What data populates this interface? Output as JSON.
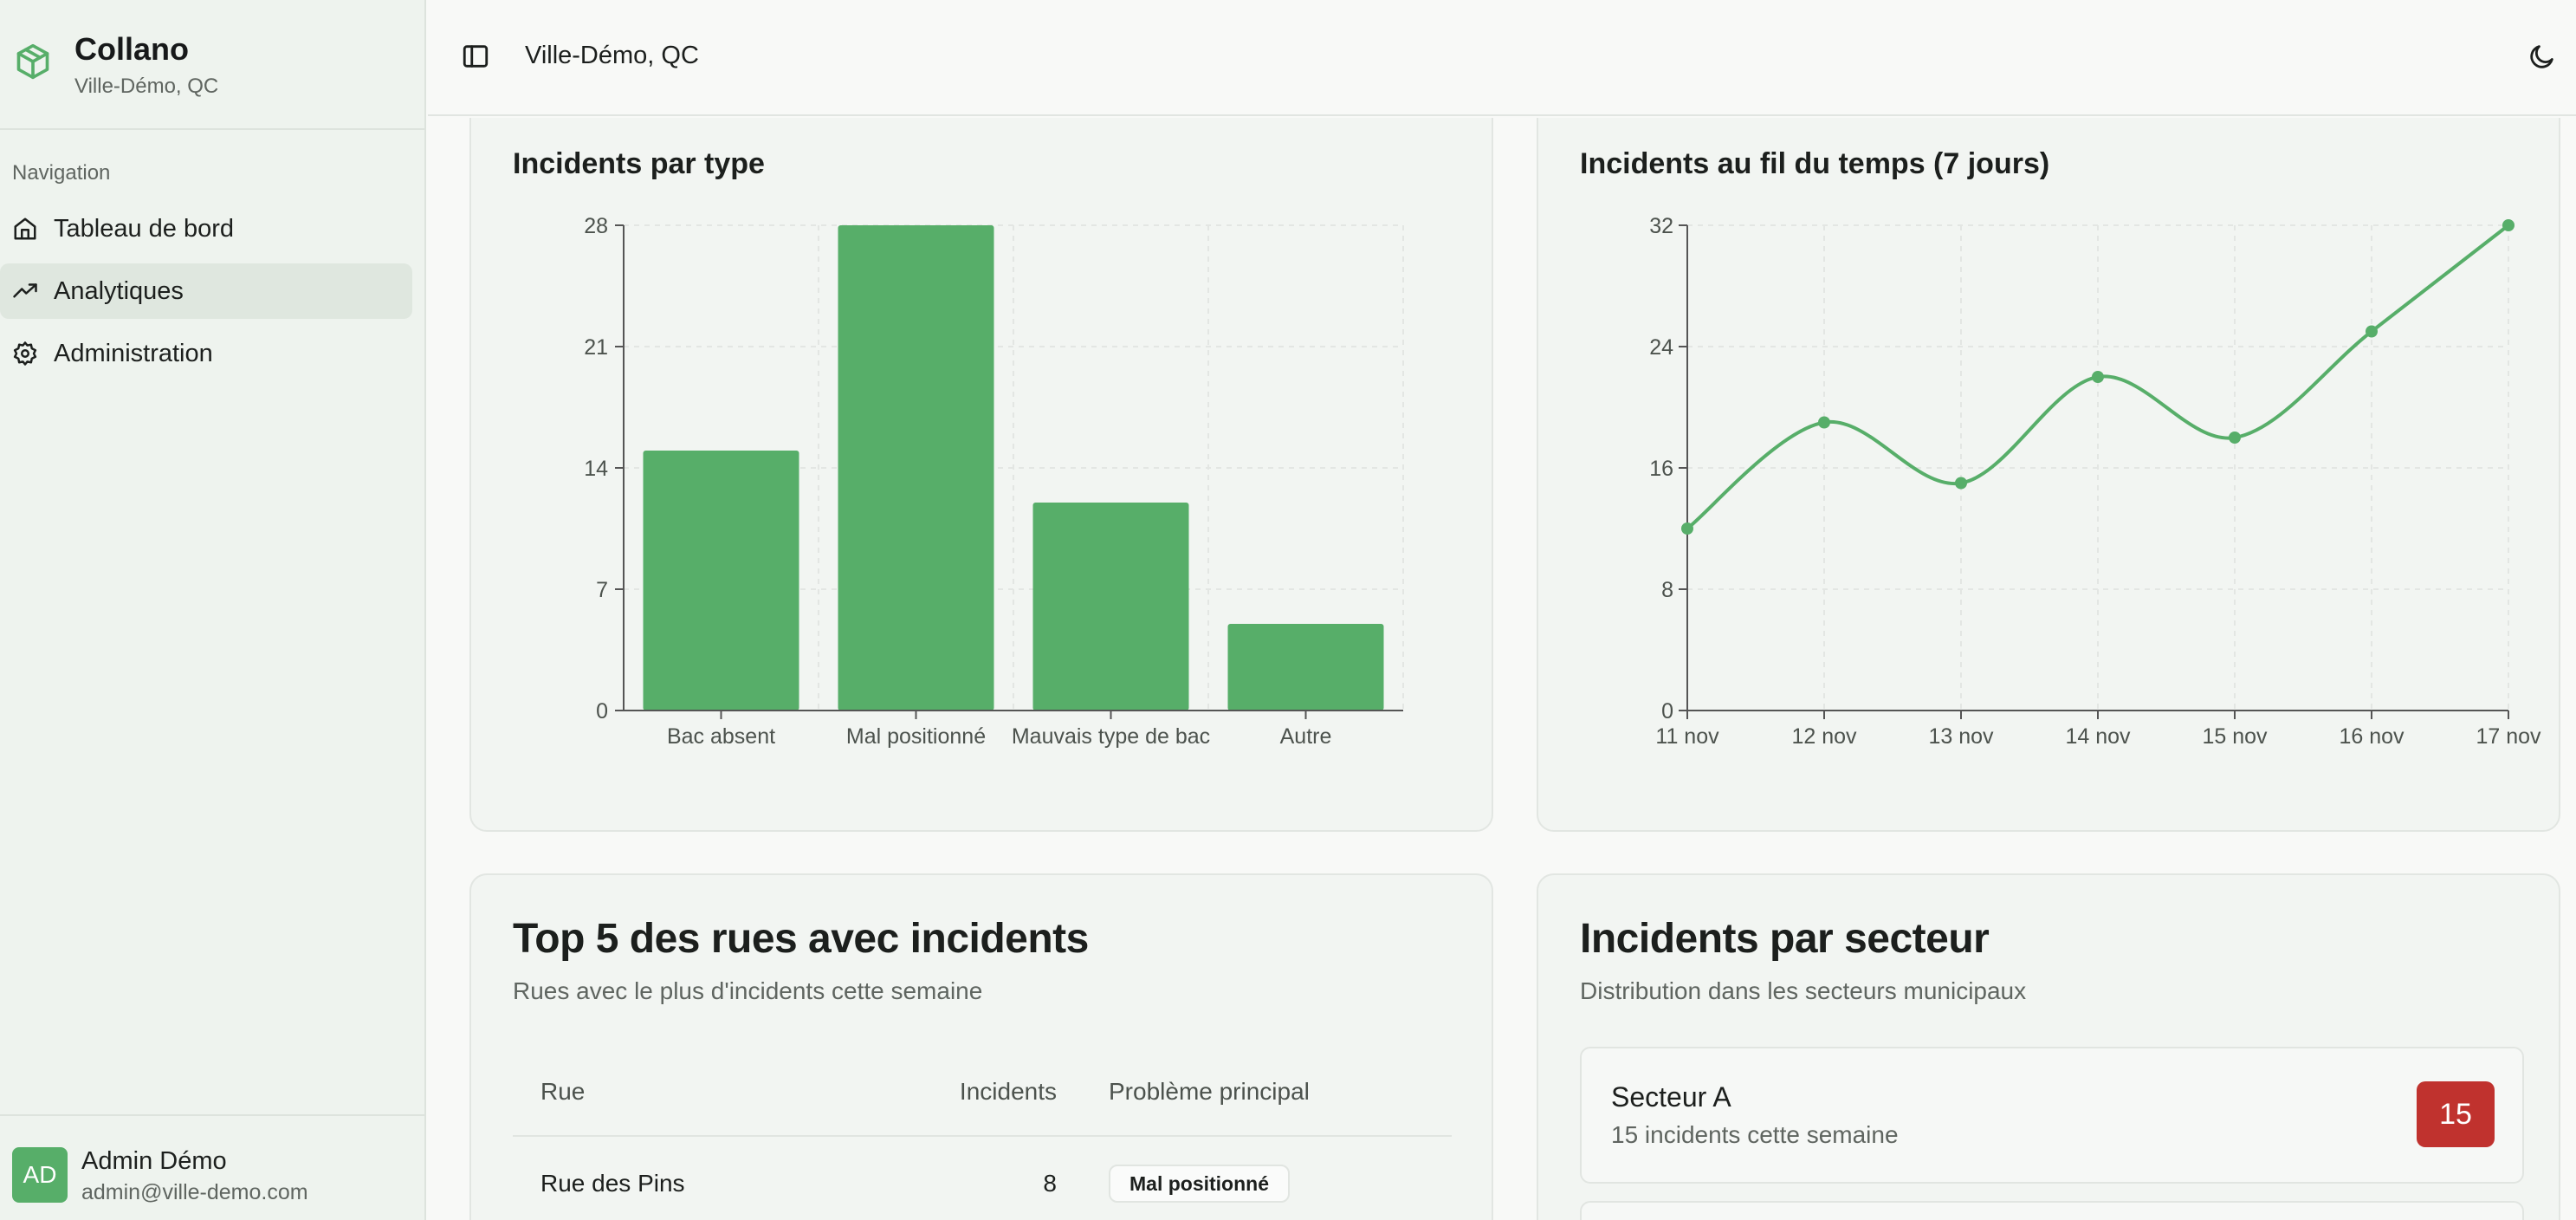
{
  "app": {
    "name": "Collano",
    "location": "Ville-Démo, QC"
  },
  "sidebar": {
    "heading": "Navigation",
    "items": [
      {
        "label": "Tableau de bord",
        "icon": "home-icon",
        "active": false
      },
      {
        "label": "Analytiques",
        "icon": "trending-up-icon",
        "active": true
      },
      {
        "label": "Administration",
        "icon": "gear-icon",
        "active": false
      }
    ],
    "user": {
      "initials": "AD",
      "name": "Admin Démo",
      "email": "admin@ville-demo.com"
    }
  },
  "header": {
    "title": "Ville-Démo, QC",
    "toggle_icon": "sidebar-toggle-icon",
    "theme_icon": "moon-icon"
  },
  "colors": {
    "accent": "#57ae69",
    "danger": "#c0322e",
    "grid": "#e3e6e3"
  },
  "chart_data": [
    {
      "type": "bar",
      "title": "Incidents par type",
      "categories": [
        "Bac absent",
        "Mal positionné",
        "Mauvais type de bac",
        "Autre"
      ],
      "values": [
        15,
        28,
        12,
        5
      ],
      "ylim": [
        0,
        28
      ],
      "yticks": [
        "0",
        "7",
        "14",
        "21",
        "28"
      ],
      "grid": true
    },
    {
      "type": "line",
      "title": "Incidents au fil du temps (7 jours)",
      "x": [
        "11 nov",
        "12 nov",
        "13 nov",
        "14 nov",
        "15 nov",
        "16 nov",
        "17 nov"
      ],
      "values": [
        12,
        19,
        15,
        22,
        18,
        25,
        32
      ],
      "ylim": [
        0,
        32
      ],
      "yticks": [
        "0",
        "8",
        "16",
        "24",
        "32"
      ],
      "grid": true
    }
  ],
  "top_streets": {
    "title": "Top 5 des rues avec incidents",
    "subtitle": "Rues avec le plus d'incidents cette semaine",
    "headers": {
      "street": "Rue",
      "incidents": "Incidents",
      "problem": "Problème principal"
    },
    "rows": [
      {
        "street": "Rue des Pins",
        "incidents": "8",
        "problem": "Mal positionné"
      }
    ]
  },
  "sectors": {
    "title": "Incidents par secteur",
    "subtitle": "Distribution dans les secteurs municipaux",
    "items": [
      {
        "name": "Secteur A",
        "desc": "15 incidents cette semaine",
        "count": "15"
      }
    ]
  }
}
